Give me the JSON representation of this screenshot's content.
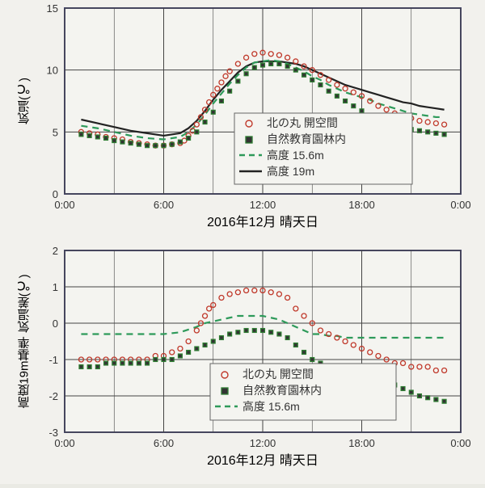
{
  "background": "#f2f1ed",
  "panel_border": "#484878",
  "grid_color": "#444",
  "axis_color": "#333",
  "font_family": "sans-serif",
  "top": {
    "ylabel": "気温(℃)",
    "xlabel": "2016年12月  晴天日",
    "yticks": [
      0,
      5,
      10,
      15
    ],
    "xticks": [
      "0:00",
      "6:00",
      "12:00",
      "18:00",
      "0:00"
    ],
    "ylim": [
      0,
      15
    ],
    "xlim": [
      0,
      24
    ],
    "legend": {
      "items": [
        {
          "sym": "open",
          "label": "北の丸  開空間"
        },
        {
          "sym": "sq",
          "label": "自然教育園林内"
        },
        {
          "sym": "dash",
          "label": "高度  15.6m"
        },
        {
          "sym": "solid",
          "label": "高度  19m"
        }
      ]
    },
    "colors": {
      "open": "#c0392b",
      "sq_border": "#2e7d32",
      "sq_fill": "#333",
      "dash": "#2e9a5a",
      "solid": "#222"
    },
    "line_widths": {
      "dash": 2.2,
      "solid": 2.2
    },
    "marker_size": 3.0,
    "series": {
      "open_circle": [
        [
          1,
          5.0
        ],
        [
          1.5,
          4.9
        ],
        [
          2,
          4.8
        ],
        [
          2.5,
          4.6
        ],
        [
          3,
          4.5
        ],
        [
          3.5,
          4.4
        ],
        [
          4,
          4.2
        ],
        [
          4.5,
          4.1
        ],
        [
          5,
          4.0
        ],
        [
          5.5,
          3.9
        ],
        [
          6,
          3.9
        ],
        [
          6.5,
          4.0
        ],
        [
          7,
          4.1
        ],
        [
          7.25,
          4.3
        ],
        [
          7.5,
          4.7
        ],
        [
          7.75,
          5.1
        ],
        [
          8,
          5.6
        ],
        [
          8.25,
          6.2
        ],
        [
          8.5,
          6.8
        ],
        [
          8.75,
          7.4
        ],
        [
          9,
          8.0
        ],
        [
          9.25,
          8.5
        ],
        [
          9.5,
          9.0
        ],
        [
          9.75,
          9.5
        ],
        [
          10,
          9.9
        ],
        [
          10.5,
          10.5
        ],
        [
          11,
          11.0
        ],
        [
          11.5,
          11.3
        ],
        [
          12,
          11.4
        ],
        [
          12.5,
          11.3
        ],
        [
          13,
          11.2
        ],
        [
          13.5,
          11.0
        ],
        [
          14,
          10.7
        ],
        [
          14.5,
          10.3
        ],
        [
          15,
          10.0
        ],
        [
          15.5,
          9.6
        ],
        [
          16,
          9.2
        ],
        [
          16.5,
          8.8
        ],
        [
          17,
          8.5
        ],
        [
          17.5,
          8.2
        ],
        [
          18,
          7.9
        ],
        [
          18.5,
          7.5
        ],
        [
          19,
          7.1
        ],
        [
          19.5,
          6.8
        ],
        [
          20,
          6.5
        ],
        [
          20.5,
          6.3
        ],
        [
          21,
          6.1
        ],
        [
          21.5,
          5.9
        ],
        [
          22,
          5.8
        ],
        [
          22.5,
          5.7
        ],
        [
          23,
          5.6
        ]
      ],
      "square": [
        [
          1,
          4.8
        ],
        [
          1.5,
          4.7
        ],
        [
          2,
          4.6
        ],
        [
          2.5,
          4.5
        ],
        [
          3,
          4.3
        ],
        [
          3.5,
          4.2
        ],
        [
          4,
          4.1
        ],
        [
          4.5,
          4.0
        ],
        [
          5,
          3.9
        ],
        [
          5.5,
          3.9
        ],
        [
          6,
          3.9
        ],
        [
          6.5,
          4.0
        ],
        [
          7,
          4.2
        ],
        [
          7.5,
          4.5
        ],
        [
          8,
          5.0
        ],
        [
          8.5,
          5.8
        ],
        [
          9,
          6.6
        ],
        [
          9.5,
          7.5
        ],
        [
          10,
          8.3
        ],
        [
          10.5,
          9.1
        ],
        [
          11,
          9.7
        ],
        [
          11.5,
          10.2
        ],
        [
          12,
          10.4
        ],
        [
          12.5,
          10.5
        ],
        [
          13,
          10.5
        ],
        [
          13.5,
          10.3
        ],
        [
          14,
          10.0
        ],
        [
          14.5,
          9.6
        ],
        [
          15,
          9.2
        ],
        [
          15.5,
          8.8
        ],
        [
          16,
          8.3
        ],
        [
          16.5,
          7.9
        ],
        [
          17,
          7.5
        ],
        [
          17.5,
          7.1
        ],
        [
          18,
          6.7
        ],
        [
          18.5,
          6.3
        ],
        [
          19,
          6.0
        ],
        [
          19.5,
          5.7
        ],
        [
          20,
          5.5
        ],
        [
          20.5,
          5.3
        ],
        [
          21,
          5.2
        ],
        [
          21.5,
          5.1
        ],
        [
          22,
          5.0
        ],
        [
          22.5,
          4.9
        ],
        [
          23,
          4.8
        ]
      ],
      "dash": [
        [
          1,
          5.5
        ],
        [
          2,
          5.3
        ],
        [
          3,
          5.0
        ],
        [
          4,
          4.7
        ],
        [
          5,
          4.5
        ],
        [
          6,
          4.4
        ],
        [
          7,
          4.6
        ],
        [
          7.5,
          5.0
        ],
        [
          8,
          5.6
        ],
        [
          8.5,
          6.4
        ],
        [
          9,
          7.3
        ],
        [
          9.5,
          8.1
        ],
        [
          10,
          8.9
        ],
        [
          10.5,
          9.6
        ],
        [
          11,
          10.2
        ],
        [
          11.5,
          10.6
        ],
        [
          12,
          10.7
        ],
        [
          12.5,
          10.8
        ],
        [
          13,
          10.7
        ],
        [
          13.5,
          10.5
        ],
        [
          14,
          10.2
        ],
        [
          14.5,
          9.9
        ],
        [
          15,
          9.5
        ],
        [
          15.5,
          9.2
        ],
        [
          16,
          8.8
        ],
        [
          16.5,
          8.5
        ],
        [
          17,
          8.2
        ],
        [
          17.5,
          8.0
        ],
        [
          18,
          7.8
        ],
        [
          18.5,
          7.6
        ],
        [
          19,
          7.3
        ],
        [
          19.5,
          7.1
        ],
        [
          20,
          6.9
        ],
        [
          20.5,
          6.7
        ],
        [
          21,
          6.5
        ],
        [
          21.5,
          6.4
        ],
        [
          22,
          6.3
        ],
        [
          22.5,
          6.2
        ],
        [
          23,
          6.2
        ]
      ],
      "solid": [
        [
          1,
          6.0
        ],
        [
          2,
          5.7
        ],
        [
          3,
          5.4
        ],
        [
          4,
          5.1
        ],
        [
          5,
          4.9
        ],
        [
          6,
          4.7
        ],
        [
          7,
          4.9
        ],
        [
          7.5,
          5.3
        ],
        [
          8,
          5.9
        ],
        [
          8.5,
          6.7
        ],
        [
          9,
          7.6
        ],
        [
          9.5,
          8.4
        ],
        [
          10,
          9.1
        ],
        [
          10.5,
          9.8
        ],
        [
          11,
          10.3
        ],
        [
          11.5,
          10.6
        ],
        [
          12,
          10.7
        ],
        [
          12.5,
          10.7
        ],
        [
          13,
          10.7
        ],
        [
          13.5,
          10.6
        ],
        [
          14,
          10.5
        ],
        [
          14.5,
          10.3
        ],
        [
          15,
          10.0
        ],
        [
          15.5,
          9.7
        ],
        [
          16,
          9.4
        ],
        [
          16.5,
          9.1
        ],
        [
          17,
          8.8
        ],
        [
          17.5,
          8.6
        ],
        [
          18,
          8.4
        ],
        [
          18.5,
          8.2
        ],
        [
          19,
          8.0
        ],
        [
          19.5,
          7.8
        ],
        [
          20,
          7.6
        ],
        [
          20.5,
          7.4
        ],
        [
          21,
          7.3
        ],
        [
          21.5,
          7.1
        ],
        [
          22,
          7.0
        ],
        [
          22.5,
          6.9
        ],
        [
          23,
          6.8
        ]
      ]
    }
  },
  "bottom": {
    "ylabel": "高度19m基準  気温差(℃)",
    "xlabel": "2016年12月  晴天日",
    "yticks": [
      -3,
      -2,
      -1,
      0,
      1,
      2
    ],
    "xticks": [
      "0:00",
      "6:00",
      "12:00",
      "18:00",
      "0:00"
    ],
    "ylim": [
      -3,
      2
    ],
    "xlim": [
      0,
      24
    ],
    "legend": {
      "items": [
        {
          "sym": "open",
          "label": "北の丸  開空間"
        },
        {
          "sym": "sq",
          "label": "自然教育園林内"
        },
        {
          "sym": "dash",
          "label": "高度  15.6m"
        }
      ]
    },
    "series": {
      "open_circle": [
        [
          1,
          -1.0
        ],
        [
          1.5,
          -1.0
        ],
        [
          2,
          -1.0
        ],
        [
          2.5,
          -1.0
        ],
        [
          3,
          -1.0
        ],
        [
          3.5,
          -1.0
        ],
        [
          4,
          -1.0
        ],
        [
          4.5,
          -1.0
        ],
        [
          5,
          -1.0
        ],
        [
          5.5,
          -0.9
        ],
        [
          6,
          -0.9
        ],
        [
          6.5,
          -0.8
        ],
        [
          7,
          -0.7
        ],
        [
          7.5,
          -0.5
        ],
        [
          8,
          -0.2
        ],
        [
          8.25,
          0.0
        ],
        [
          8.5,
          0.2
        ],
        [
          8.75,
          0.4
        ],
        [
          9,
          0.5
        ],
        [
          9.5,
          0.7
        ],
        [
          10,
          0.8
        ],
        [
          10.5,
          0.85
        ],
        [
          11,
          0.9
        ],
        [
          11.5,
          0.9
        ],
        [
          12,
          0.9
        ],
        [
          12.5,
          0.85
        ],
        [
          13,
          0.8
        ],
        [
          13.5,
          0.7
        ],
        [
          14,
          0.4
        ],
        [
          14.5,
          0.2
        ],
        [
          15,
          0.0
        ],
        [
          15.5,
          -0.2
        ],
        [
          16,
          -0.3
        ],
        [
          16.5,
          -0.4
        ],
        [
          17,
          -0.5
        ],
        [
          17.5,
          -0.6
        ],
        [
          18,
          -0.7
        ],
        [
          18.5,
          -0.8
        ],
        [
          19,
          -0.9
        ],
        [
          19.5,
          -1.0
        ],
        [
          20,
          -1.1
        ],
        [
          20.5,
          -1.1
        ],
        [
          21,
          -1.2
        ],
        [
          21.5,
          -1.2
        ],
        [
          22,
          -1.2
        ],
        [
          22.5,
          -1.3
        ],
        [
          23,
          -1.3
        ]
      ],
      "square": [
        [
          1,
          -1.2
        ],
        [
          1.5,
          -1.2
        ],
        [
          2,
          -1.2
        ],
        [
          2.5,
          -1.1
        ],
        [
          3,
          -1.1
        ],
        [
          3.5,
          -1.1
        ],
        [
          4,
          -1.1
        ],
        [
          4.5,
          -1.1
        ],
        [
          5,
          -1.1
        ],
        [
          5.5,
          -1.0
        ],
        [
          6,
          -1.0
        ],
        [
          6.5,
          -1.0
        ],
        [
          7,
          -0.9
        ],
        [
          7.5,
          -0.8
        ],
        [
          8,
          -0.7
        ],
        [
          8.5,
          -0.6
        ],
        [
          9,
          -0.5
        ],
        [
          9.5,
          -0.4
        ],
        [
          10,
          -0.3
        ],
        [
          10.5,
          -0.25
        ],
        [
          11,
          -0.2
        ],
        [
          11.5,
          -0.2
        ],
        [
          12,
          -0.2
        ],
        [
          12.5,
          -0.25
        ],
        [
          13,
          -0.3
        ],
        [
          13.5,
          -0.4
        ],
        [
          14,
          -0.6
        ],
        [
          14.5,
          -0.8
        ],
        [
          15,
          -1.0
        ],
        [
          15.5,
          -1.1
        ],
        [
          16,
          -1.2
        ],
        [
          16.5,
          -1.35
        ],
        [
          17,
          -1.5
        ],
        [
          17.5,
          -1.6
        ],
        [
          18,
          -1.7
        ],
        [
          18.5,
          -1.8
        ],
        [
          19,
          -1.7
        ],
        [
          19.5,
          -1.6
        ],
        [
          20,
          -1.7
        ],
        [
          20.5,
          -1.8
        ],
        [
          21,
          -1.9
        ],
        [
          21.5,
          -2.0
        ],
        [
          22,
          -2.05
        ],
        [
          22.5,
          -2.1
        ],
        [
          23,
          -2.15
        ]
      ],
      "dash": [
        [
          1,
          -0.3
        ],
        [
          2,
          -0.3
        ],
        [
          3,
          -0.3
        ],
        [
          4,
          -0.3
        ],
        [
          5,
          -0.3
        ],
        [
          6,
          -0.3
        ],
        [
          7,
          -0.25
        ],
        [
          8,
          -0.1
        ],
        [
          8.5,
          0.0
        ],
        [
          9,
          0.05
        ],
        [
          9.5,
          0.1
        ],
        [
          10,
          0.15
        ],
        [
          10.5,
          0.2
        ],
        [
          11,
          0.2
        ],
        [
          11.5,
          0.2
        ],
        [
          12,
          0.2
        ],
        [
          12.5,
          0.15
        ],
        [
          13,
          0.1
        ],
        [
          13.5,
          0.0
        ],
        [
          14,
          -0.1
        ],
        [
          14.5,
          -0.2
        ],
        [
          15,
          -0.3
        ],
        [
          15.5,
          -0.3
        ],
        [
          16,
          -0.35
        ],
        [
          16.5,
          -0.35
        ],
        [
          17,
          -0.4
        ],
        [
          17.5,
          -0.4
        ],
        [
          18,
          -0.4
        ],
        [
          18.5,
          -0.4
        ],
        [
          19,
          -0.4
        ],
        [
          19.5,
          -0.4
        ],
        [
          20,
          -0.4
        ],
        [
          20.5,
          -0.4
        ],
        [
          21,
          -0.4
        ],
        [
          21.5,
          -0.4
        ],
        [
          22,
          -0.4
        ],
        [
          22.5,
          -0.4
        ],
        [
          23,
          -0.4
        ]
      ]
    }
  }
}
